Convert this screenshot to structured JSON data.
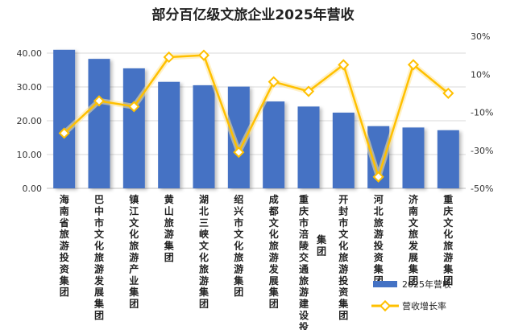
{
  "chart_data": {
    "type": "bar",
    "title": "部分百亿级文旅企业2025年营收",
    "categories": [
      "海南省旅游投资集团",
      "巴中市文化旅游发展集团",
      "镇江文化旅游产业集团",
      "黄山旅游集团",
      "湖北三峡文化旅游集团",
      "绍兴市文化旅游集团",
      "成都文化旅游发展集团",
      "重庆市涪陵交通旅游建设投资 集团",
      "开封市文化旅游投资集团",
      "河北旅游投资集团",
      "济南文旅发展集团",
      "重庆文化旅游集团"
    ],
    "series": [
      {
        "name": "2025年营收",
        "type": "bar",
        "axis": "left",
        "color": "#4472C4",
        "values": [
          41.0,
          38.3,
          35.5,
          31.5,
          30.5,
          30.1,
          25.7,
          24.2,
          22.4,
          18.4,
          18.0,
          17.2
        ]
      },
      {
        "name": "营收增长率",
        "type": "line",
        "axis": "right",
        "color": "#FFC000",
        "values": [
          -21,
          -4,
          -7,
          19,
          20,
          -31,
          6,
          1,
          15,
          -44,
          15,
          0
        ]
      }
    ],
    "y_left": {
      "ylim": [
        0,
        45
      ],
      "ticks": [
        0,
        10,
        20,
        30,
        40
      ],
      "tick_labels": [
        "0.00",
        "10.00",
        "20.00",
        "30.00",
        "40.00"
      ]
    },
    "y_right": {
      "ylim": [
        -50,
        30
      ],
      "ticks": [
        30,
        10,
        -10,
        -30,
        -50
      ],
      "tick_labels": [
        "30%",
        "10%",
        "-10%",
        "-30%",
        "-50%"
      ]
    },
    "grid": true,
    "legend_position": "bottom-right"
  }
}
